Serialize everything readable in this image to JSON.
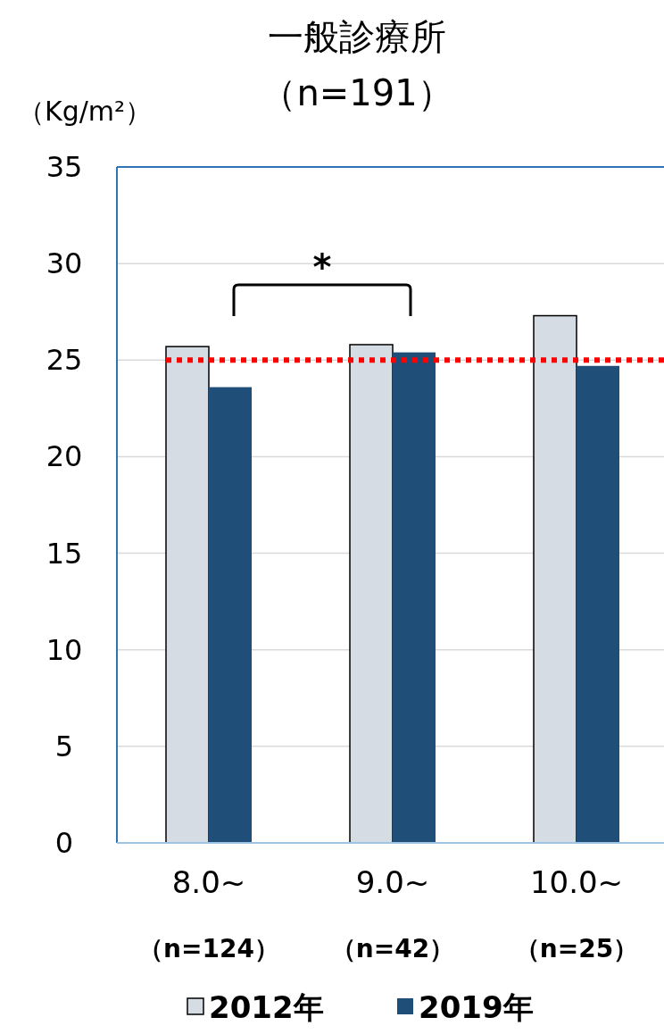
{
  "chart_data": {
    "type": "bar",
    "title": "一般診療所",
    "subtitle": "（n=191）",
    "ylabel": "（Kg/m²）",
    "categories": [
      "8.0~\n（n=124）",
      "9.0~\n（n=42）",
      "10.0~\n（n=25）"
    ],
    "series": [
      {
        "name": "2012年",
        "color": "#d6dce4",
        "values": [
          25.7,
          25.8,
          27.3
        ]
      },
      {
        "name": "2019年",
        "color": "#1f4e79",
        "values": [
          23.6,
          25.4,
          24.7
        ]
      }
    ],
    "ylim": [
      0,
      35
    ],
    "yticks": [
      0,
      5,
      10,
      15,
      20,
      25,
      30,
      35
    ],
    "grid": "y",
    "legend": "bottom",
    "ref_lines": [
      {
        "axis": "y",
        "value": 25,
        "color": "#ff0000",
        "line_style": "dotted"
      }
    ],
    "annotations": [
      "*"
    ]
  }
}
